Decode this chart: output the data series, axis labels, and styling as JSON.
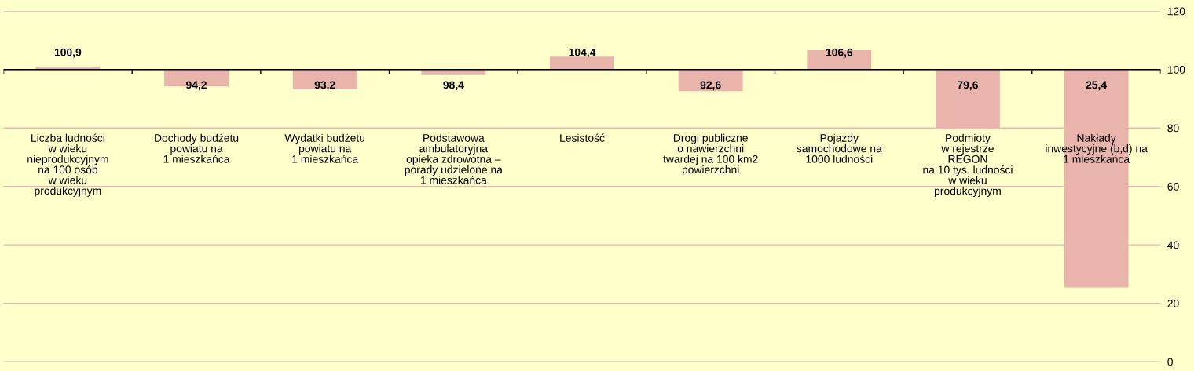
{
  "chart_data": {
    "type": "bar",
    "categories": [
      "Liczba ludności\nw wieku\nnieprodukcyjnym\nna 100 osób\nw wieku\nprodukcyjnym",
      "Dochody budżetu\npowiatu na\n1 mieszkańca",
      "Wydatki budżetu\npowiatu na\n1 mieszkańca",
      "Podstawowa\nambulatoryjna\nopieka zdrowotna –\nporady udzielone na\n1 mieszkańca",
      "Lesistość",
      "Drogi publiczne\no nawierzchni\ntwardej na 100 km2\npowierzchni",
      "Pojazdy\nsamochodowe na\n1000 ludności",
      "Podmioty\nw rejestrze\nREGON\nna 10 tys. ludności\nw wieku\nprodukcyjnym",
      "Nakłady\ninwestycyjne (b,d) na\n1 mieszkańca"
    ],
    "base": [
      100,
      100,
      100,
      100,
      100,
      100,
      100,
      100,
      100
    ],
    "values": [
      0.9,
      -5.8,
      -6.8,
      -1.6,
      4.4,
      -7.4,
      6.6,
      -20.4,
      -74.6
    ],
    "value_labels": [
      "100,9",
      "94,2",
      "93,2",
      "98,4",
      "104,4",
      "92,6",
      "106,6",
      "79,6",
      "25,4"
    ],
    "color": "#e8b4ac",
    "ylim": [
      0,
      120
    ],
    "yticks": [
      0,
      20,
      40,
      60,
      80,
      100,
      120
    ],
    "grid": "y",
    "ref_lines": [
      {
        "axis": "y",
        "value": 100,
        "color": "#000000"
      }
    ]
  }
}
